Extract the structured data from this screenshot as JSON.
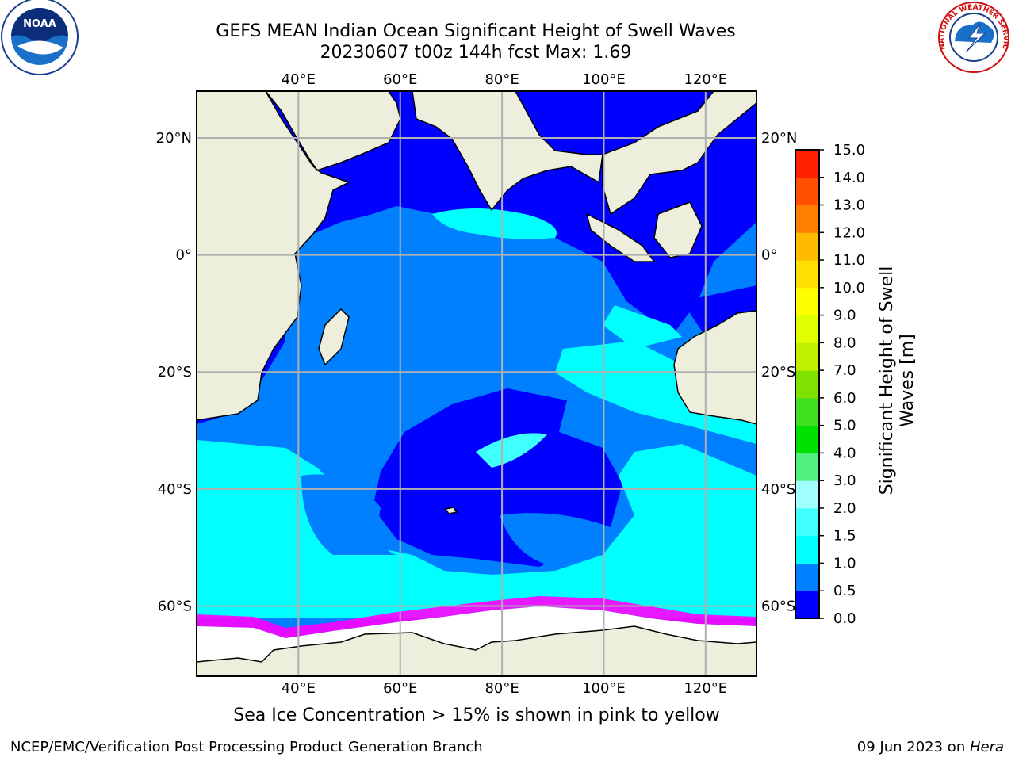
{
  "header": {
    "title_line1": "GEFS MEAN Indian Ocean Significant Height of Swell Waves",
    "title_line2": "20230607 t00z 144h fcst   Max: 1.69"
  },
  "map": {
    "lon_ticks": [
      "40°E",
      "60°E",
      "80°E",
      "100°E",
      "120°E"
    ],
    "lat_ticks": [
      "20°N",
      "0°",
      "20°S",
      "40°S",
      "60°S"
    ],
    "lon_values": [
      40,
      60,
      80,
      100,
      120
    ],
    "lat_values": [
      20,
      0,
      -20,
      -40,
      -60
    ],
    "extent": {
      "lon_min": 20,
      "lon_max": 130,
      "lat_min": -72,
      "lat_max": 28
    },
    "colors": {
      "land": "#eeeedd",
      "band_0_0p5": "#0000ff",
      "band_0p5_1": "#0080ff",
      "band_1_1p5": "#00ffff",
      "band_1p5_2": "#40ffff",
      "ice": "#ff00ff",
      "grid": "#b0b0b0"
    }
  },
  "colorbar": {
    "tick_labels": [
      "0.0",
      "0.5",
      "1.0",
      "1.5",
      "2.0",
      "3.0",
      "4.0",
      "5.0",
      "6.0",
      "7.0",
      "8.0",
      "9.0",
      "10.0",
      "11.0",
      "12.0",
      "13.0",
      "14.0",
      "15.0"
    ],
    "colors": [
      "#0000ff",
      "#0080ff",
      "#00ffff",
      "#40ffff",
      "#a0ffff",
      "#50f080",
      "#00e000",
      "#40e020",
      "#80e000",
      "#c0f000",
      "#e0ff00",
      "#ffff00",
      "#ffe000",
      "#ffbb00",
      "#ff8000",
      "#ff5000",
      "#ff2000"
    ],
    "label": "Significant Height of Swell Waves [m]"
  },
  "note": "Sea Ice Concentration > 15% is shown in pink to yellow",
  "footer": {
    "left": "NCEP/EMC/Verification Post Processing Product Generation Branch",
    "date": "09 Jun 2023 on ",
    "machine": "Hera"
  },
  "logos": {
    "noaa": "NOAA",
    "nws": "NATIONAL WEATHER SERVICE"
  }
}
